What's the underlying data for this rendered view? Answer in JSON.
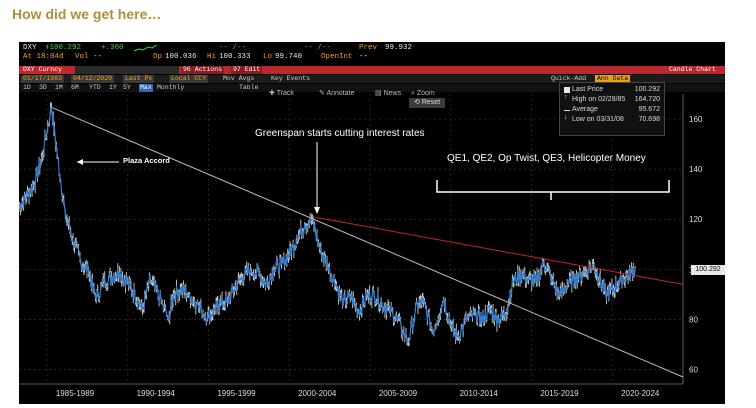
{
  "slide_title": "How did we get here…",
  "quote_line1": {
    "ticker": "DXY",
    "last": "↟100.292",
    "change": "+.360",
    "dashes1": "-- /--",
    "prev_label": "Prev",
    "prev": "99.932"
  },
  "quote_line2": {
    "time": "At 18:04d",
    "vol_label": "Vol",
    "vol": "--",
    "op_label": "Op",
    "op": "100.036",
    "hi_label": "Hi",
    "hi": "100.333",
    "lo_label": "Lo",
    "lo": "99.740",
    "openint_label": "OpenInt",
    "openint": "--"
  },
  "toolbar": {
    "security": "DXY Curncy",
    "actions": "96 Actions",
    "edit": "97 Edit",
    "chart_type": "Candle Chart",
    "date_start": "01/17/1983",
    "date_end": "04/12/2020",
    "last_px": "Last Px",
    "local_ccy": "Local CCY",
    "mov_avgs": "Mov Avgs",
    "key_events": "Key Events",
    "quick_add": "Quick-Add",
    "ann_data": "Ann Data"
  },
  "timeframes": [
    "1D",
    "3D",
    "1M",
    "6M",
    "YTD",
    "1Y",
    "5Y",
    "Max",
    "Monthly"
  ],
  "timeframe_selected": "Max",
  "table_label": "Table",
  "chart_tools": [
    "Track",
    "Annotate",
    "News",
    "Zoom"
  ],
  "reset_label": "Reset",
  "legend": {
    "last_price_label": "Last Price",
    "last_price": "100.292",
    "high_label": "High on 02/28/85",
    "high": "164.720",
    "avg_label": "Average",
    "avg": "95.672",
    "low_label": "Low on 03/31/08",
    "low": "70.698"
  },
  "price_label": "100.292",
  "annotations": {
    "plaza": "Plaza Accord",
    "greenspan": "Greenspan starts cutting interest rates",
    "qe": "QE1, QE2, Op Twist, QE3, Helicopter Money"
  },
  "colors": {
    "price_line": "#2f7fd6",
    "price_tick": "#cfcfcf",
    "trend_white": "#bcbcbc",
    "trend_red": "#c02626",
    "title_gold": "#b08f38"
  },
  "chart_data": {
    "type": "line",
    "title": "",
    "xlabel": "",
    "ylabel": "",
    "ylim": [
      55,
      170
    ],
    "yticks": [
      60,
      80,
      100,
      120,
      140,
      160
    ],
    "x_categories": [
      "1985-1989",
      "1990-1994",
      "1995-1999",
      "2000-2004",
      "2005-2009",
      "2010-2014",
      "2015-2019",
      "2020-2024"
    ],
    "xlim": [
      1983.0,
      2026.0
    ],
    "series": [
      {
        "points": [
          [
            1983.0,
            125
          ],
          [
            1983.5,
            129
          ],
          [
            1984.0,
            134
          ],
          [
            1984.5,
            145
          ],
          [
            1985.1,
            164.7
          ],
          [
            1985.5,
            145
          ],
          [
            1986.0,
            122
          ],
          [
            1986.5,
            112
          ],
          [
            1987.0,
            103
          ],
          [
            1987.5,
            99
          ],
          [
            1988.0,
            88
          ],
          [
            1988.5,
            95
          ],
          [
            1989.0,
            97
          ],
          [
            1989.5,
            99
          ],
          [
            1990.0,
            95
          ],
          [
            1990.5,
            90
          ],
          [
            1991.0,
            84
          ],
          [
            1991.5,
            96
          ],
          [
            1992.0,
            90
          ],
          [
            1992.7,
            80
          ],
          [
            1993.0,
            90
          ],
          [
            1993.5,
            92
          ],
          [
            1994.0,
            90
          ],
          [
            1994.5,
            86
          ],
          [
            1995.2,
            81
          ],
          [
            1995.7,
            84
          ],
          [
            1996.0,
            86
          ],
          [
            1996.5,
            87
          ],
          [
            1997.0,
            93
          ],
          [
            1997.5,
            97
          ],
          [
            1998.0,
            100
          ],
          [
            1998.6,
            98
          ],
          [
            1999.0,
            94
          ],
          [
            1999.5,
            100
          ],
          [
            2000.0,
            102
          ],
          [
            2000.5,
            106
          ],
          [
            2001.0,
            112
          ],
          [
            2001.5,
            118
          ],
          [
            2002.0,
            120
          ],
          [
            2002.5,
            108
          ],
          [
            2003.0,
            101
          ],
          [
            2003.5,
            94
          ],
          [
            2004.0,
            87
          ],
          [
            2004.5,
            89
          ],
          [
            2005.0,
            83
          ],
          [
            2005.5,
            89
          ],
          [
            2006.0,
            90
          ],
          [
            2006.5,
            86
          ],
          [
            2007.0,
            84
          ],
          [
            2007.5,
            80
          ],
          [
            2008.2,
            71
          ],
          [
            2008.8,
            86
          ],
          [
            2009.2,
            87
          ],
          [
            2009.8,
            75
          ],
          [
            2010.5,
            88
          ],
          [
            2011.0,
            77
          ],
          [
            2011.4,
            73
          ],
          [
            2012.0,
            80
          ],
          [
            2012.6,
            82
          ],
          [
            2013.0,
            80
          ],
          [
            2013.5,
            84
          ],
          [
            2014.0,
            80
          ],
          [
            2014.5,
            82
          ],
          [
            2015.0,
            95
          ],
          [
            2015.5,
            98
          ],
          [
            2016.0,
            96
          ],
          [
            2016.5,
            95
          ],
          [
            2017.0,
            103
          ],
          [
            2017.5,
            96
          ],
          [
            2018.0,
            89
          ],
          [
            2018.5,
            94
          ],
          [
            2019.0,
            96
          ],
          [
            2019.5,
            98
          ],
          [
            2020.2,
            102
          ],
          [
            2020.6,
            96
          ],
          [
            2021.0,
            90
          ],
          [
            2021.5,
            92
          ],
          [
            2022.0,
            96
          ],
          [
            2022.5,
            98
          ],
          [
            2022.9,
            100.292
          ]
        ]
      }
    ],
    "trendlines": [
      {
        "color": "white",
        "from": [
          1985.1,
          164.7
        ],
        "to": [
          2026.0,
          57
        ]
      },
      {
        "color": "red",
        "from": [
          2002.0,
          121
        ],
        "to": [
          2026.0,
          94
        ]
      }
    ]
  }
}
